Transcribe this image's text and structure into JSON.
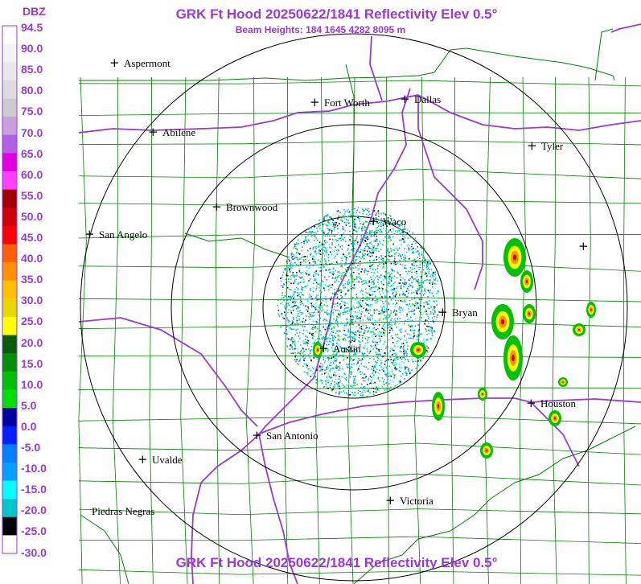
{
  "header": {
    "title": "GRK Ft Hood 20250622/1841 Reflectivity Elev 0.5°",
    "subtitle": "Beam Heights: 184 1645 4282 8095 m",
    "footer_title": "GRK Ft Hood 20250622/1841 Reflectivity Elev 0.5°"
  },
  "legend": {
    "unit": "DBZ",
    "labels": [
      "94.5",
      "90.0",
      "85.0",
      "80.0",
      "75.0",
      "70.0",
      "65.0",
      "60.0",
      "55.0",
      "50.0",
      "45.0",
      "40.0",
      "35.0",
      "30.0",
      "25.0",
      "20.0",
      "15.0",
      "10.0",
      "5.0",
      "0.0",
      "-5.0",
      "-10.0",
      "-15.0",
      "-20.0",
      "-25.0",
      "-30.0"
    ],
    "colors": [
      "#ffffff",
      "#f4f4f4",
      "#e8e8e8",
      "#dcdcdc",
      "#cccccc",
      "#c8a0e0",
      "#b060e0",
      "#e000e0",
      "#ff40ff",
      "#a00000",
      "#d00000",
      "#ff0000",
      "#ff6000",
      "#ff9000",
      "#ffc000",
      "#e8d800",
      "#ffff00",
      "#006000",
      "#009000",
      "#00c000",
      "#00e000",
      "#0000a0",
      "#0020ff",
      "#0080ff",
      "#00a0ff",
      "#00ffff",
      "#00c8c8",
      "#000000",
      "#ffffff"
    ]
  },
  "cities": [
    {
      "id": "aspermont",
      "name": "Aspermont"
    },
    {
      "id": "fort-worth",
      "name": "Fort Worth"
    },
    {
      "id": "dallas",
      "name": "Dallas"
    },
    {
      "id": "abilene",
      "name": "Abilene"
    },
    {
      "id": "tyler",
      "name": "Tyler"
    },
    {
      "id": "brownwood",
      "name": "Brownwood"
    },
    {
      "id": "waco",
      "name": "Waco"
    },
    {
      "id": "san-angelo",
      "name": "San Angelo"
    },
    {
      "id": "bryan",
      "name": "Bryan"
    },
    {
      "id": "austin",
      "name": "Austin"
    },
    {
      "id": "houston",
      "name": "Houston"
    },
    {
      "id": "san-antonio",
      "name": "San Antonio"
    },
    {
      "id": "uvalde",
      "name": "Uvalde"
    },
    {
      "id": "victoria",
      "name": "Victoria"
    },
    {
      "id": "piedras-negras",
      "name": "Piedras Negras"
    },
    {
      "id": "unnamed-east",
      "name": ""
    }
  ],
  "colors": {
    "accent": "#9a38d8",
    "county_lines": "#008000",
    "highways": "#9a38d8",
    "range_rings": "#000000"
  }
}
